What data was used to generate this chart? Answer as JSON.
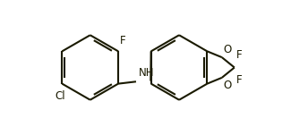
{
  "bg_color": "#ffffff",
  "line_color": "#1a1a00",
  "text_color": "#1a1a00",
  "label_F_top": "F",
  "label_Cl": "Cl",
  "label_NH": "NH",
  "label_H": "H",
  "label_O1": "O",
  "label_O2": "O",
  "label_F1": "F",
  "label_F2": "F",
  "figsize": [
    3.44,
    1.51
  ],
  "dpi": 100
}
